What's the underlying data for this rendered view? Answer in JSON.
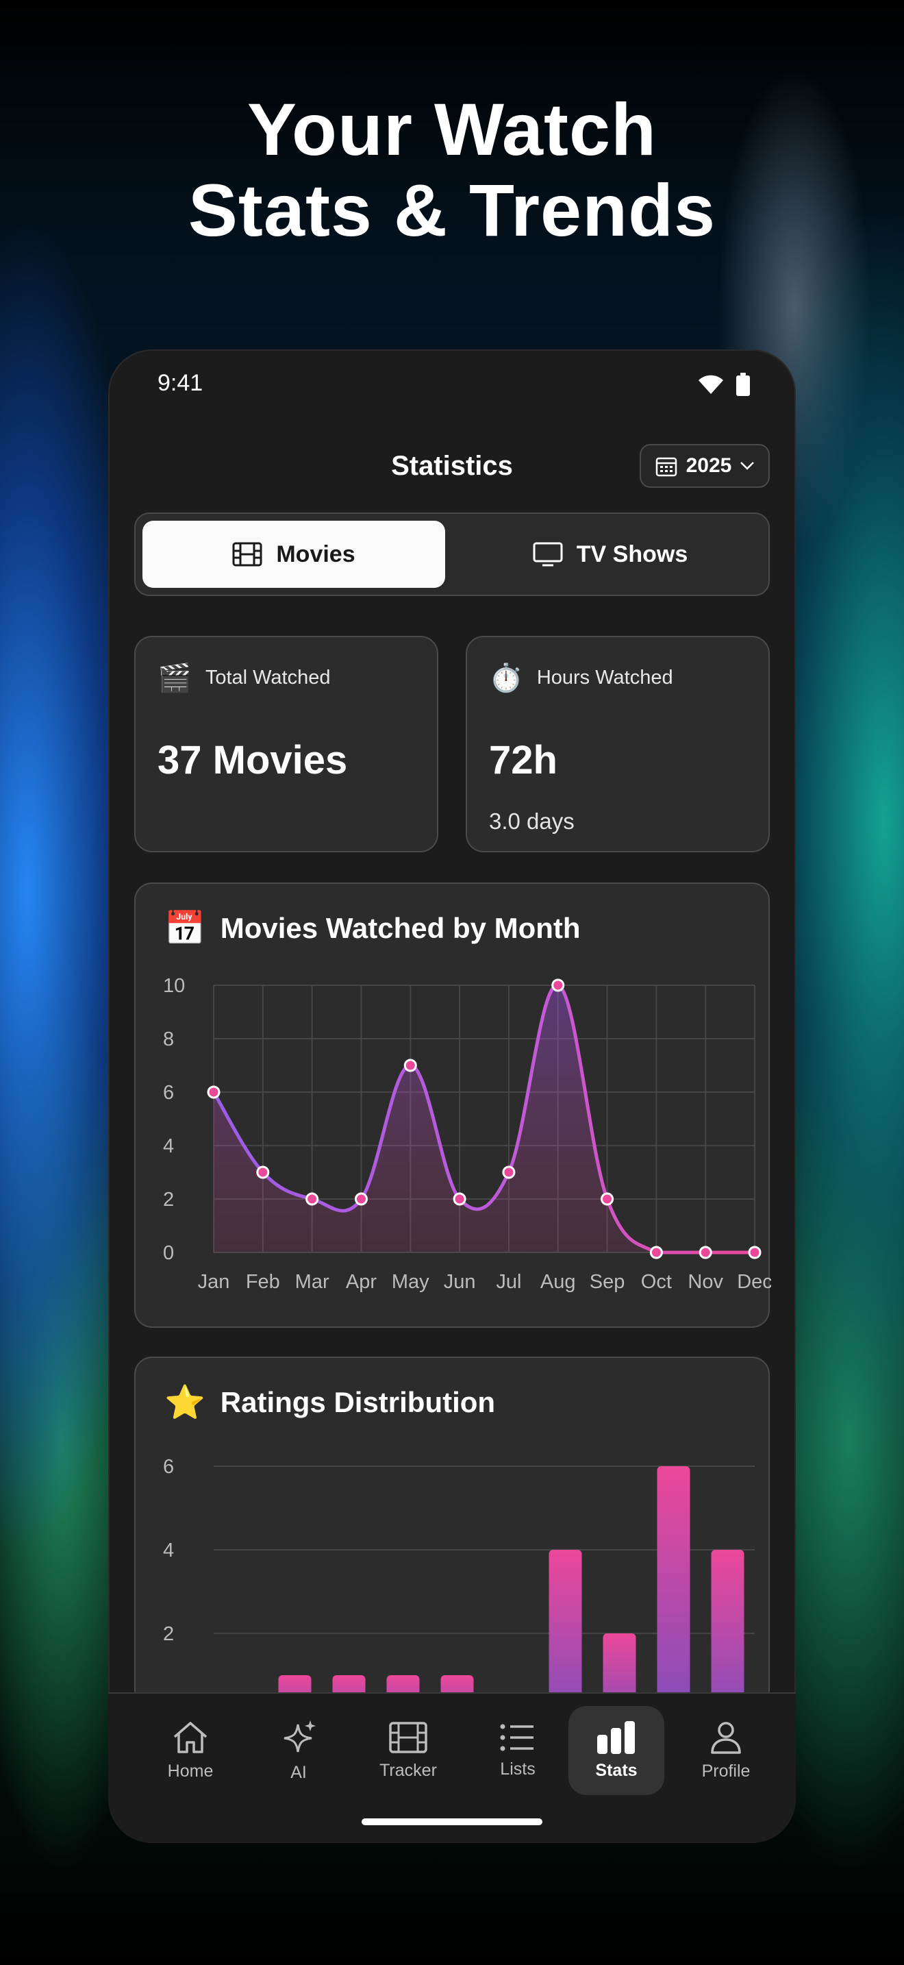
{
  "headline": {
    "line1": "Your Watch",
    "line2": "Stats & Trends"
  },
  "status_bar": {
    "time": "9:41"
  },
  "header": {
    "title": "Statistics",
    "year": "2025"
  },
  "tabs": [
    {
      "label": "Movies",
      "active": true
    },
    {
      "label": "TV Shows",
      "active": false
    }
  ],
  "stats": {
    "total": {
      "emoji": "🎬",
      "label": "Total Watched",
      "value": "37 Movies"
    },
    "hours": {
      "emoji": "⏱️",
      "label": "Hours Watched",
      "value": "72h",
      "sub": "3.0 days"
    }
  },
  "monthly_card": {
    "emoji": "📅",
    "title": "Movies Watched by Month"
  },
  "ratings_card": {
    "emoji": "⭐",
    "title": "Ratings Distribution"
  },
  "nav": {
    "items": [
      {
        "label": "Home",
        "icon": "home-icon"
      },
      {
        "label": "AI",
        "icon": "sparkle-icon"
      },
      {
        "label": "Tracker",
        "icon": "film-icon"
      },
      {
        "label": "Lists",
        "icon": "list-icon"
      },
      {
        "label": "Stats",
        "icon": "bar-chart-icon",
        "active": true
      },
      {
        "label": "Profile",
        "icon": "person-icon"
      }
    ]
  },
  "colors": {
    "line_start": "#9b5de5",
    "line_end": "#ec4899",
    "bar_top": "#ec4899",
    "bar_bottom": "#7c4dbd",
    "point": "#ec4899"
  },
  "chart_data": [
    {
      "type": "line",
      "title": "Movies Watched by Month",
      "categories": [
        "Jan",
        "Feb",
        "Mar",
        "Apr",
        "May",
        "Jun",
        "Jul",
        "Aug",
        "Sep",
        "Oct",
        "Nov",
        "Dec"
      ],
      "values": [
        6,
        3,
        2,
        2,
        7,
        2,
        3,
        10,
        2,
        0,
        0,
        0
      ],
      "yticks": [
        "0",
        "2",
        "4",
        "6",
        "8",
        "10"
      ],
      "ylim": [
        0,
        10
      ],
      "grid": true,
      "area_fill": true
    },
    {
      "type": "bar",
      "title": "Ratings Distribution",
      "values": [
        0,
        1,
        1,
        1,
        1,
        0,
        4,
        2,
        6,
        4
      ],
      "yticks": [
        "2",
        "4",
        "6"
      ],
      "ylim": [
        0,
        6
      ],
      "grid": true
    }
  ]
}
